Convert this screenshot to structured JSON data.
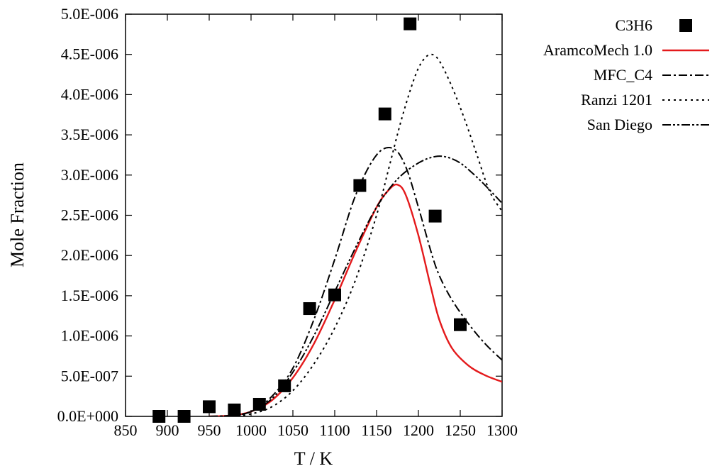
{
  "chart_data": {
    "type": "line",
    "title": "",
    "xlabel": "T / K",
    "ylabel": "Mole Fraction",
    "xlim": [
      850,
      1300
    ],
    "ylim": [
      0,
      5e-06
    ],
    "x_ticks": [
      850,
      900,
      950,
      1000,
      1050,
      1100,
      1150,
      1200,
      1250,
      1300
    ],
    "x_tick_labels": [
      "850",
      "900",
      "950",
      "1000",
      "1050",
      "1100",
      "1150",
      "1200",
      "1250",
      "1300"
    ],
    "y_ticks": [
      0,
      5e-07,
      1e-06,
      1.5e-06,
      2e-06,
      2.5e-06,
      3e-06,
      3.5e-06,
      4e-06,
      4.5e-06,
      5e-06
    ],
    "y_tick_labels": [
      "0.0E+000",
      "5.0E-007",
      "1.0E-006",
      "1.5E-006",
      "2.0E-006",
      "2.5E-006",
      "3.0E-006",
      "3.5E-006",
      "4.0E-006",
      "4.5E-006",
      "5.0E-006"
    ],
    "grid": false,
    "legend_position": "outside-top-right",
    "points": {
      "name": "C3H6",
      "marker": "square",
      "color": "#000000",
      "x": [
        890,
        920,
        950,
        980,
        1010,
        1040,
        1070,
        1100,
        1130,
        1160,
        1190,
        1220,
        1250
      ],
      "y": [
        0.0,
        0.0,
        1.2e-07,
        8e-08,
        1.5e-07,
        3.8e-07,
        1.34e-06,
        1.51e-06,
        2.87e-06,
        3.76e-06,
        4.88e-06,
        2.49e-06,
        1.14e-06
      ]
    },
    "series": [
      {
        "name": "AramcoMech 1.0",
        "style": "solid",
        "color": "#e41a1c",
        "x": [
          950,
          975,
          1000,
          1025,
          1050,
          1075,
          1100,
          1125,
          1150,
          1165,
          1175,
          1185,
          1200,
          1215,
          1225,
          1240,
          1260,
          1280,
          1300
        ],
        "y": [
          0.0,
          1e-08,
          6e-08,
          2e-07,
          4.8e-07,
          9e-07,
          1.45e-06,
          2.05e-06,
          2.6e-06,
          2.82e-06,
          2.88e-06,
          2.75e-06,
          2.25e-06,
          1.6e-06,
          1.2e-06,
          8.5e-07,
          6.3e-07,
          5.1e-07,
          4.3e-07
        ]
      },
      {
        "name": "MFC_C4",
        "style": "dash-dot",
        "color": "#000000",
        "x": [
          950,
          975,
          1000,
          1025,
          1050,
          1075,
          1100,
          1125,
          1150,
          1170,
          1185,
          1200,
          1215,
          1225,
          1240,
          1260,
          1280,
          1300
        ],
        "y": [
          0.0,
          1e-08,
          6e-08,
          2.5e-07,
          6e-07,
          1.2e-06,
          1.95e-06,
          2.75e-06,
          3.25e-06,
          3.33e-06,
          3.1e-06,
          2.6e-06,
          2.05e-06,
          1.75e-06,
          1.45e-06,
          1.15e-06,
          9e-07,
          7e-07
        ]
      },
      {
        "name": "Ranzi 1201",
        "style": "dotted",
        "color": "#000000",
        "x": [
          950,
          975,
          1000,
          1025,
          1050,
          1075,
          1100,
          1125,
          1150,
          1165,
          1180,
          1195,
          1205,
          1215,
          1225,
          1240,
          1255,
          1270,
          1285,
          1300
        ],
        "y": [
          0.0,
          0.0,
          3e-08,
          1.2e-07,
          3.2e-07,
          6.5e-07,
          1.1e-06,
          1.7e-06,
          2.5e-06,
          3.1e-06,
          3.7e-06,
          4.2e-06,
          4.42e-06,
          4.5e-06,
          4.42e-06,
          4.1e-06,
          3.7e-06,
          3.25e-06,
          2.8e-06,
          2.55e-06
        ]
      },
      {
        "name": "San Diego",
        "style": "dash-dot-dot",
        "color": "#000000",
        "x": [
          950,
          975,
          1000,
          1025,
          1050,
          1075,
          1100,
          1125,
          1150,
          1175,
          1200,
          1220,
          1235,
          1250,
          1265,
          1280,
          1300
        ],
        "y": [
          0.0,
          1e-08,
          6e-08,
          2.2e-07,
          5.5e-07,
          1e-06,
          1.55e-06,
          2.1e-06,
          2.6e-06,
          2.95e-06,
          3.15e-06,
          3.23e-06,
          3.22e-06,
          3.15e-06,
          3.02e-06,
          2.87e-06,
          2.65e-06
        ]
      }
    ]
  }
}
